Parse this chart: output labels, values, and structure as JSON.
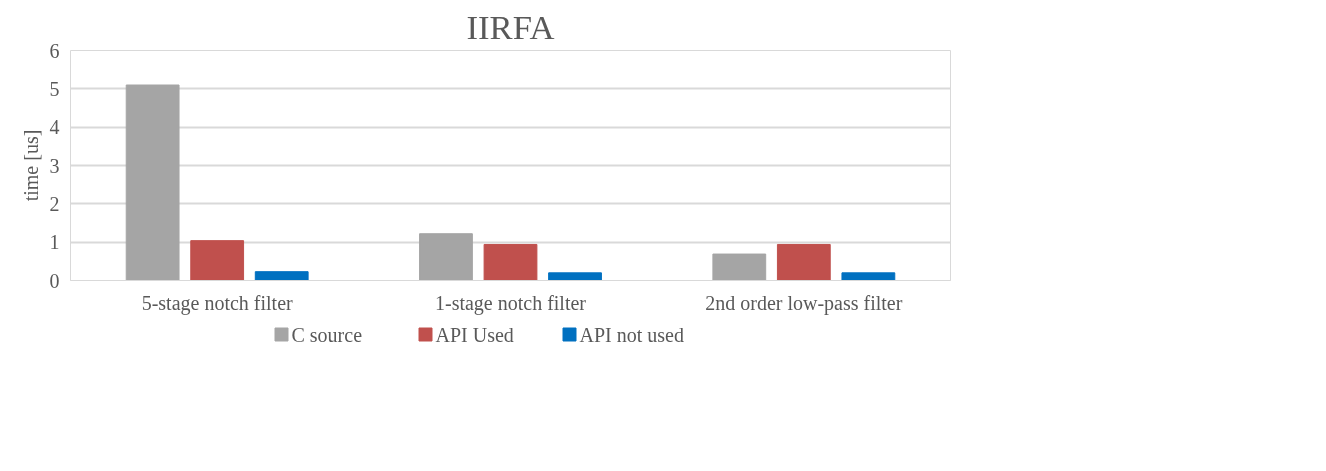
{
  "chart_data": {
    "type": "bar",
    "title": "IIRFA",
    "ylabel": "time [us]",
    "categories": [
      "5-stage notch filter",
      "1-stage notch filter",
      "2nd order low-pass filter"
    ],
    "series": [
      {
        "name": "C source",
        "color": "#a5a5a5",
        "values": [
          5.1,
          1.22,
          0.69
        ]
      },
      {
        "name": "API Used",
        "color": "#c0504d",
        "values": [
          1.04,
          0.94,
          0.94
        ]
      },
      {
        "name": "API not used",
        "color": "#0070c0",
        "values": [
          0.23,
          0.2,
          0.2
        ]
      }
    ],
    "ylim": [
      0,
      6
    ],
    "yticks": [
      0,
      1,
      2,
      3,
      4,
      5,
      6
    ],
    "grid": "y",
    "legend": "bottom"
  }
}
